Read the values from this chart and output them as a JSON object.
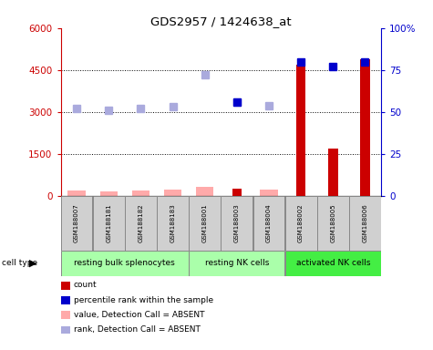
{
  "title": "GDS2957 / 1424638_at",
  "samples": [
    "GSM188007",
    "GSM188181",
    "GSM188182",
    "GSM188183",
    "GSM188001",
    "GSM188003",
    "GSM188004",
    "GSM188002",
    "GSM188005",
    "GSM188006"
  ],
  "cell_types": [
    {
      "label": "resting bulk splenocytes",
      "start": 0,
      "end": 3,
      "color": "#aaffaa"
    },
    {
      "label": "resting NK cells",
      "start": 4,
      "end": 6,
      "color": "#aaffaa"
    },
    {
      "label": "activated NK cells",
      "start": 7,
      "end": 9,
      "color": "#44ee44"
    }
  ],
  "count_values": [
    null,
    null,
    null,
    null,
    null,
    270,
    null,
    4700,
    1680,
    4900
  ],
  "absent_value": [
    190,
    160,
    210,
    220,
    340,
    null,
    220,
    null,
    null,
    null
  ],
  "absent_rank_pct": [
    52,
    51,
    52,
    53,
    72,
    56,
    54,
    null,
    null,
    null
  ],
  "present_rank_pct": [
    null,
    null,
    null,
    null,
    null,
    56,
    null,
    80,
    77,
    80
  ],
  "ylim_left": [
    0,
    6000
  ],
  "ylim_right": [
    0,
    100
  ],
  "yticks_left": [
    0,
    1500,
    3000,
    4500,
    6000
  ],
  "ytick_labels_left": [
    "0",
    "1500",
    "3000",
    "4500",
    "6000"
  ],
  "yticks_right": [
    0,
    25,
    50,
    75,
    100
  ],
  "ytick_labels_right": [
    "0",
    "25",
    "50",
    "75",
    "100%"
  ],
  "legend_items": [
    {
      "color": "#cc0000",
      "label": "count"
    },
    {
      "color": "#0000cc",
      "label": "percentile rank within the sample"
    },
    {
      "color": "#ffaaaa",
      "label": "value, Detection Call = ABSENT"
    },
    {
      "color": "#aaaadd",
      "label": "rank, Detection Call = ABSENT"
    }
  ],
  "left_axis_color": "#cc0000",
  "right_axis_color": "#0000cc",
  "absent_bar_color": "#ffaaaa",
  "absent_rank_color": "#aaaadd",
  "count_bar_color": "#cc0000",
  "present_rank_color": "#0000cc"
}
